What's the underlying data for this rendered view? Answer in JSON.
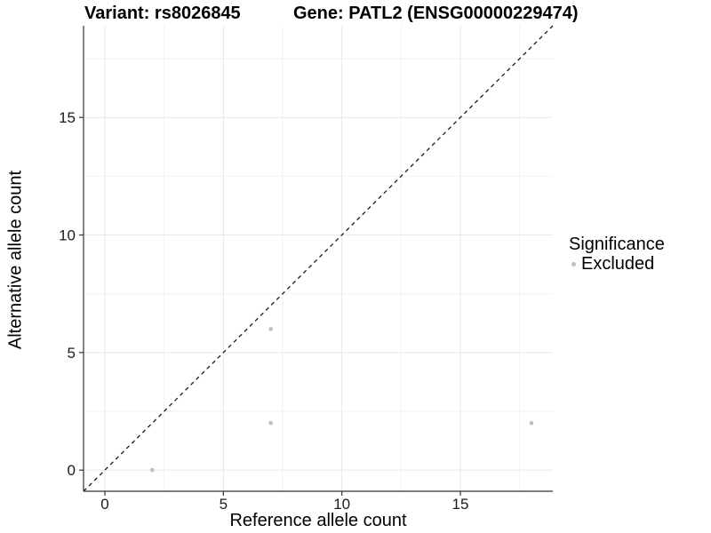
{
  "chart_data": {
    "type": "scatter",
    "title_left": "Variant: rs8026845",
    "title_right": "Gene: PATL2 (ENSG00000229474)",
    "xlabel": "Reference allele count",
    "ylabel": "Alternative allele count",
    "xlim": [
      -0.9,
      18.9
    ],
    "ylim": [
      -0.9,
      18.9
    ],
    "x_ticks": [
      0,
      5,
      10,
      15
    ],
    "y_ticks": [
      0,
      5,
      10,
      15
    ],
    "minor_ticks": [
      2.5,
      7.5,
      12.5,
      17.5
    ],
    "grid": "major+minor",
    "identity_line": {
      "equation": "y = x",
      "style": "dashed",
      "color": "#1a1a1a"
    },
    "series": [
      {
        "name": "Excluded",
        "color": "#bebebe",
        "points": [
          {
            "x": 2,
            "y": 0
          },
          {
            "x": 7,
            "y": 2
          },
          {
            "x": 7,
            "y": 6
          },
          {
            "x": 18,
            "y": 2
          }
        ]
      }
    ],
    "legend": {
      "title": "Significance",
      "position": "right",
      "items": [
        {
          "label": "Excluded",
          "color": "#bebebe",
          "marker": "circle"
        }
      ]
    },
    "colors": {
      "major_grid": "#e7e7e7",
      "minor_grid": "#f2f2f2",
      "axis_line": "#333333",
      "tick_text": "#1a1a1a",
      "point": "#bebebe"
    }
  }
}
